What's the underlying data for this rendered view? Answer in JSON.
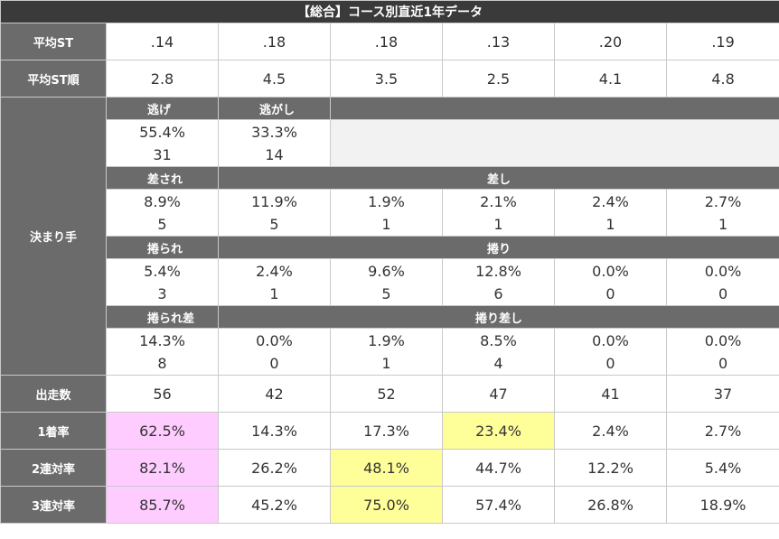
{
  "title": "【総合】コース別直近1年データ",
  "rows": {
    "avg_st": {
      "label": "平均ST",
      "values": [
        ".14",
        ".18",
        ".18",
        ".13",
        ".20",
        ".19"
      ]
    },
    "avg_st_rank": {
      "label": "平均ST順",
      "values": [
        "2.8",
        "4.5",
        "3.5",
        "2.5",
        "4.1",
        "4.8"
      ]
    },
    "kimarite": {
      "label": "決まり手",
      "nige": {
        "label": "逃げ",
        "pct": "55.4%",
        "count": "31"
      },
      "nigashi": {
        "label": "逃がし",
        "pct": "33.3%",
        "count": "14"
      },
      "sasare": {
        "label": "差され",
        "pct": "8.9%",
        "count": "5"
      },
      "sashi": {
        "label": "差し",
        "pct": [
          "11.9%",
          "1.9%",
          "2.1%",
          "2.4%",
          "2.7%"
        ],
        "count": [
          "5",
          "1",
          "1",
          "1",
          "1"
        ]
      },
      "makurare": {
        "label": "捲られ",
        "pct": "5.4%",
        "count": "3"
      },
      "makuri": {
        "label": "捲り",
        "pct": [
          "2.4%",
          "9.6%",
          "12.8%",
          "0.0%",
          "0.0%"
        ],
        "count": [
          "1",
          "5",
          "6",
          "0",
          "0"
        ]
      },
      "makurare_sashi": {
        "label": "捲られ差",
        "pct": "14.3%",
        "count": "8"
      },
      "makuri_sashi": {
        "label": "捲り差し",
        "pct": [
          "0.0%",
          "1.9%",
          "8.5%",
          "0.0%",
          "0.0%"
        ],
        "count": [
          "0",
          "1",
          "4",
          "0",
          "0"
        ]
      }
    },
    "starts": {
      "label": "出走数",
      "values": [
        "56",
        "42",
        "52",
        "47",
        "41",
        "37"
      ]
    },
    "win_rate": {
      "label": "1着率",
      "values": [
        "62.5%",
        "14.3%",
        "17.3%",
        "23.4%",
        "2.4%",
        "2.7%"
      ]
    },
    "quinella_rate": {
      "label": "2連対率",
      "values": [
        "82.1%",
        "26.2%",
        "48.1%",
        "44.7%",
        "12.2%",
        "5.4%"
      ]
    },
    "trio_rate": {
      "label": "3連対率",
      "values": [
        "85.7%",
        "45.2%",
        "75.0%",
        "57.4%",
        "26.8%",
        "18.9%"
      ]
    }
  },
  "highlight_colors": {
    "pink": "#ffccff",
    "yellow": "#ffff99"
  }
}
